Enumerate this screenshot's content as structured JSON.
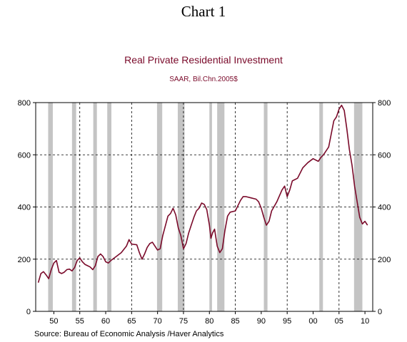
{
  "page": {
    "title": "Chart 1"
  },
  "chart_data": {
    "type": "line",
    "title": "Real Private Residential Investment",
    "subtitle": "SAAR, Bil.Chn.2005$",
    "source": "Source:   Bureau of Economic Analysis /Haver Analytics",
    "xlim": [
      1946.5,
      2011.5
    ],
    "ylim": [
      0,
      800
    ],
    "x_ticks": [
      1950,
      1955,
      1960,
      1965,
      1970,
      1975,
      1980,
      1985,
      1990,
      1995,
      2000,
      2005,
      2010
    ],
    "x_tick_labels": [
      "50",
      "55",
      "60",
      "65",
      "70",
      "75",
      "80",
      "85",
      "90",
      "95",
      "00",
      "05",
      "10"
    ],
    "y_ticks": [
      0,
      200,
      400,
      600,
      800
    ],
    "y_tick_labels": [
      "0",
      "200",
      "400",
      "600",
      "800"
    ],
    "grid": {
      "horizontal": true,
      "vertical": true,
      "style": "dashed"
    },
    "line_color": "#7a0a2a",
    "recession_color": "#c4c4c4",
    "recessions": [
      [
        1948.9,
        1949.8
      ],
      [
        1953.5,
        1954.3
      ],
      [
        1957.6,
        1958.3
      ],
      [
        1960.3,
        1961.1
      ],
      [
        1969.9,
        1970.9
      ],
      [
        1973.9,
        1975.2
      ],
      [
        1980.0,
        1980.5
      ],
      [
        1981.5,
        1982.9
      ],
      [
        1990.5,
        1991.2
      ],
      [
        2001.2,
        2001.9
      ],
      [
        2007.9,
        2009.5
      ]
    ],
    "series": [
      {
        "x": [
          1947.0,
          1947.5,
          1948.0,
          1948.5,
          1949.0,
          1949.5,
          1950.0,
          1950.5,
          1951.0,
          1951.5,
          1952.0,
          1952.5,
          1953.0,
          1953.5,
          1954.0,
          1954.5,
          1955.0,
          1955.5,
          1956.0,
          1956.5,
          1957.0,
          1957.5,
          1958.0,
          1958.5,
          1959.0,
          1959.5,
          1960.0,
          1960.5,
          1961.0,
          1962.0,
          1963.0,
          1964.0,
          1964.5,
          1965.0,
          1966.0,
          1966.5,
          1967.0,
          1967.5,
          1968.0,
          1968.5,
          1969.0,
          1969.5,
          1970.0,
          1970.5,
          1971.0,
          1972.0,
          1972.5,
          1973.0,
          1973.5,
          1974.0,
          1974.5,
          1975.0,
          1975.5,
          1976.0,
          1976.5,
          1977.0,
          1977.5,
          1978.0,
          1978.5,
          1979.0,
          1979.5,
          1980.0,
          1980.3,
          1980.6,
          1981.0,
          1981.5,
          1982.0,
          1982.5,
          1983.0,
          1983.5,
          1984.0,
          1985.0,
          1986.0,
          1986.5,
          1987.0,
          1988.0,
          1989.0,
          1989.5,
          1990.0,
          1990.5,
          1991.0,
          1991.5,
          1992.0,
          1993.0,
          1994.0,
          1994.5,
          1995.0,
          1995.5,
          1996.0,
          1997.0,
          1998.0,
          1999.0,
          2000.0,
          2000.5,
          2001.0,
          2001.5,
          2002.0,
          2003.0,
          2003.5,
          2004.0,
          2004.5,
          2005.0,
          2005.5,
          2006.0,
          2006.5,
          2007.0,
          2007.5,
          2008.0,
          2008.5,
          2009.0,
          2009.5,
          2010.0,
          2010.5
        ],
        "values": [
          110,
          145,
          152,
          140,
          125,
          160,
          185,
          195,
          150,
          145,
          150,
          160,
          162,
          155,
          168,
          195,
          205,
          190,
          180,
          175,
          170,
          160,
          175,
          210,
          220,
          210,
          190,
          185,
          195,
          210,
          225,
          250,
          275,
          258,
          255,
          225,
          200,
          220,
          245,
          260,
          265,
          250,
          235,
          240,
          290,
          365,
          375,
          395,
          370,
          320,
          290,
          240,
          260,
          300,
          330,
          360,
          385,
          395,
          415,
          410,
          390,
          330,
          280,
          300,
          315,
          250,
          225,
          240,
          310,
          365,
          380,
          385,
          425,
          440,
          440,
          435,
          430,
          420,
          395,
          360,
          330,
          345,
          385,
          420,
          465,
          480,
          440,
          465,
          500,
          510,
          550,
          570,
          585,
          580,
          575,
          590,
          600,
          630,
          680,
          730,
          745,
          775,
          790,
          770,
          700,
          620,
          560,
          480,
          420,
          360,
          335,
          345,
          330
        ]
      }
    ]
  }
}
